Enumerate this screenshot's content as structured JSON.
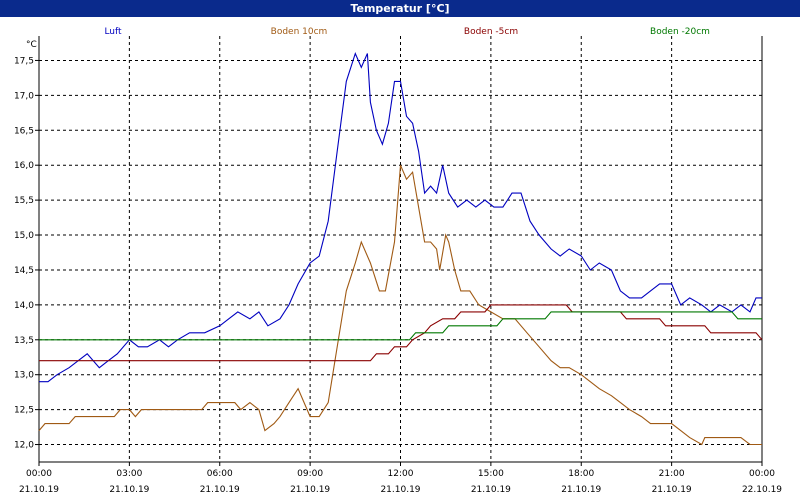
{
  "chart_data": {
    "type": "line",
    "title": "Temperatur [°C]",
    "ylabel": "°C",
    "ylim": [
      11.75,
      17.85
    ],
    "yticks": [
      "12,0",
      "12,5",
      "13,0",
      "13,5",
      "14,0",
      "14,5",
      "15,0",
      "15,5",
      "16,0",
      "16,5",
      "17,0",
      "17,5"
    ],
    "ytick_values": [
      12.0,
      12.5,
      13.0,
      13.5,
      14.0,
      14.5,
      15.0,
      15.5,
      16.0,
      16.5,
      17.0,
      17.5
    ],
    "xlim": [
      0,
      24
    ],
    "xticks": [
      {
        "time": "00:00",
        "date": "21.10.19"
      },
      {
        "time": "03:00",
        "date": "21.10.19"
      },
      {
        "time": "06:00",
        "date": "21.10.19"
      },
      {
        "time": "09:00",
        "date": "21.10.19"
      },
      {
        "time": "12:00",
        "date": "21.10.19"
      },
      {
        "time": "15:00",
        "date": "21.10.19"
      },
      {
        "time": "18:00",
        "date": "21.10.19"
      },
      {
        "time": "21:00",
        "date": "21.10.19"
      },
      {
        "time": "00:00",
        "date": "22.10.19"
      }
    ],
    "grid": true,
    "series": [
      {
        "name": "Luft",
        "color": "#0000c0",
        "points": [
          [
            0,
            12.9
          ],
          [
            0.3,
            12.9
          ],
          [
            0.6,
            13.0
          ],
          [
            1.0,
            13.1
          ],
          [
            1.3,
            13.2
          ],
          [
            1.6,
            13.3
          ],
          [
            2.0,
            13.1
          ],
          [
            2.3,
            13.2
          ],
          [
            2.6,
            13.3
          ],
          [
            3.0,
            13.5
          ],
          [
            3.3,
            13.4
          ],
          [
            3.6,
            13.4
          ],
          [
            4.0,
            13.5
          ],
          [
            4.3,
            13.4
          ],
          [
            4.6,
            13.5
          ],
          [
            5.0,
            13.6
          ],
          [
            5.5,
            13.6
          ],
          [
            6.0,
            13.7
          ],
          [
            6.3,
            13.8
          ],
          [
            6.6,
            13.9
          ],
          [
            7.0,
            13.8
          ],
          [
            7.3,
            13.9
          ],
          [
            7.6,
            13.7
          ],
          [
            8.0,
            13.8
          ],
          [
            8.3,
            14.0
          ],
          [
            8.6,
            14.3
          ],
          [
            9.0,
            14.6
          ],
          [
            9.3,
            14.7
          ],
          [
            9.6,
            15.2
          ],
          [
            9.9,
            16.2
          ],
          [
            10.2,
            17.2
          ],
          [
            10.5,
            17.6
          ],
          [
            10.7,
            17.4
          ],
          [
            10.9,
            17.6
          ],
          [
            11.0,
            16.9
          ],
          [
            11.2,
            16.5
          ],
          [
            11.4,
            16.3
          ],
          [
            11.6,
            16.6
          ],
          [
            11.8,
            17.2
          ],
          [
            12.0,
            17.2
          ],
          [
            12.2,
            16.7
          ],
          [
            12.4,
            16.6
          ],
          [
            12.6,
            16.2
          ],
          [
            12.8,
            15.6
          ],
          [
            13.0,
            15.7
          ],
          [
            13.2,
            15.6
          ],
          [
            13.4,
            16.0
          ],
          [
            13.6,
            15.6
          ],
          [
            13.9,
            15.4
          ],
          [
            14.2,
            15.5
          ],
          [
            14.5,
            15.4
          ],
          [
            14.8,
            15.5
          ],
          [
            15.1,
            15.4
          ],
          [
            15.4,
            15.4
          ],
          [
            15.7,
            15.6
          ],
          [
            16.0,
            15.6
          ],
          [
            16.3,
            15.2
          ],
          [
            16.6,
            15.0
          ],
          [
            17.0,
            14.8
          ],
          [
            17.3,
            14.7
          ],
          [
            17.6,
            14.8
          ],
          [
            18.0,
            14.7
          ],
          [
            18.3,
            14.5
          ],
          [
            18.6,
            14.6
          ],
          [
            19.0,
            14.5
          ],
          [
            19.3,
            14.2
          ],
          [
            19.6,
            14.1
          ],
          [
            20.0,
            14.1
          ],
          [
            20.3,
            14.2
          ],
          [
            20.6,
            14.3
          ],
          [
            21.0,
            14.3
          ],
          [
            21.3,
            14.0
          ],
          [
            21.6,
            14.1
          ],
          [
            22.0,
            14.0
          ],
          [
            22.3,
            13.9
          ],
          [
            22.6,
            14.0
          ],
          [
            23.0,
            13.9
          ],
          [
            23.3,
            14.0
          ],
          [
            23.6,
            13.9
          ],
          [
            23.8,
            14.1
          ],
          [
            24.0,
            14.1
          ]
        ]
      },
      {
        "name": "Boden 10cm",
        "color": "#a05a14",
        "points": [
          [
            0,
            12.2
          ],
          [
            0.2,
            12.3
          ],
          [
            0.6,
            12.3
          ],
          [
            1.0,
            12.3
          ],
          [
            1.2,
            12.4
          ],
          [
            2.0,
            12.4
          ],
          [
            2.5,
            12.4
          ],
          [
            2.7,
            12.5
          ],
          [
            3.0,
            12.5
          ],
          [
            3.2,
            12.4
          ],
          [
            3.4,
            12.5
          ],
          [
            4.0,
            12.5
          ],
          [
            5.0,
            12.5
          ],
          [
            5.4,
            12.5
          ],
          [
            5.6,
            12.6
          ],
          [
            6.0,
            12.6
          ],
          [
            6.5,
            12.6
          ],
          [
            6.7,
            12.5
          ],
          [
            7.0,
            12.6
          ],
          [
            7.3,
            12.5
          ],
          [
            7.5,
            12.2
          ],
          [
            7.8,
            12.3
          ],
          [
            8.0,
            12.4
          ],
          [
            8.3,
            12.6
          ],
          [
            8.6,
            12.8
          ],
          [
            8.8,
            12.6
          ],
          [
            9.0,
            12.4
          ],
          [
            9.3,
            12.4
          ],
          [
            9.6,
            12.6
          ],
          [
            9.9,
            13.4
          ],
          [
            10.2,
            14.2
          ],
          [
            10.5,
            14.6
          ],
          [
            10.7,
            14.9
          ],
          [
            11.0,
            14.6
          ],
          [
            11.3,
            14.2
          ],
          [
            11.5,
            14.2
          ],
          [
            11.8,
            14.9
          ],
          [
            12.0,
            16.0
          ],
          [
            12.2,
            15.8
          ],
          [
            12.4,
            15.9
          ],
          [
            12.6,
            15.4
          ],
          [
            12.8,
            14.9
          ],
          [
            13.0,
            14.9
          ],
          [
            13.2,
            14.8
          ],
          [
            13.3,
            14.5
          ],
          [
            13.5,
            15.0
          ],
          [
            13.6,
            14.9
          ],
          [
            13.8,
            14.5
          ],
          [
            14.0,
            14.2
          ],
          [
            14.3,
            14.2
          ],
          [
            14.6,
            14.0
          ],
          [
            15.0,
            13.9
          ],
          [
            15.4,
            13.8
          ],
          [
            15.8,
            13.8
          ],
          [
            16.2,
            13.6
          ],
          [
            16.6,
            13.4
          ],
          [
            17.0,
            13.2
          ],
          [
            17.3,
            13.1
          ],
          [
            17.6,
            13.1
          ],
          [
            18.0,
            13.0
          ],
          [
            18.3,
            12.9
          ],
          [
            18.6,
            12.8
          ],
          [
            19.0,
            12.7
          ],
          [
            19.3,
            12.6
          ],
          [
            19.6,
            12.5
          ],
          [
            20.0,
            12.4
          ],
          [
            20.3,
            12.3
          ],
          [
            20.6,
            12.3
          ],
          [
            21.0,
            12.3
          ],
          [
            21.3,
            12.2
          ],
          [
            21.6,
            12.1
          ],
          [
            22.0,
            12.0
          ],
          [
            22.1,
            12.1
          ],
          [
            22.6,
            12.1
          ],
          [
            23.0,
            12.1
          ],
          [
            23.3,
            12.1
          ],
          [
            23.6,
            12.0
          ],
          [
            24.0,
            12.0
          ]
        ]
      },
      {
        "name": "Boden -5cm",
        "color": "#8a0000",
        "points": [
          [
            0,
            13.2
          ],
          [
            11.0,
            13.2
          ],
          [
            11.2,
            13.3
          ],
          [
            11.6,
            13.3
          ],
          [
            11.8,
            13.4
          ],
          [
            12.2,
            13.4
          ],
          [
            12.4,
            13.5
          ],
          [
            12.8,
            13.6
          ],
          [
            13.0,
            13.7
          ],
          [
            13.4,
            13.8
          ],
          [
            13.8,
            13.8
          ],
          [
            14.0,
            13.9
          ],
          [
            14.8,
            13.9
          ],
          [
            15.0,
            14.0
          ],
          [
            17.5,
            14.0
          ],
          [
            17.7,
            13.9
          ],
          [
            19.3,
            13.9
          ],
          [
            19.5,
            13.8
          ],
          [
            20.6,
            13.8
          ],
          [
            20.8,
            13.7
          ],
          [
            22.1,
            13.7
          ],
          [
            22.3,
            13.6
          ],
          [
            23.8,
            13.6
          ],
          [
            24.0,
            13.5
          ]
        ]
      },
      {
        "name": "Boden -20cm",
        "color": "#007800",
        "points": [
          [
            0,
            13.5
          ],
          [
            12.3,
            13.5
          ],
          [
            12.5,
            13.6
          ],
          [
            13.4,
            13.6
          ],
          [
            13.6,
            13.7
          ],
          [
            15.2,
            13.7
          ],
          [
            15.4,
            13.8
          ],
          [
            16.8,
            13.8
          ],
          [
            17.0,
            13.9
          ],
          [
            23.0,
            13.9
          ],
          [
            23.2,
            13.8
          ],
          [
            24.0,
            13.8
          ]
        ]
      }
    ]
  }
}
